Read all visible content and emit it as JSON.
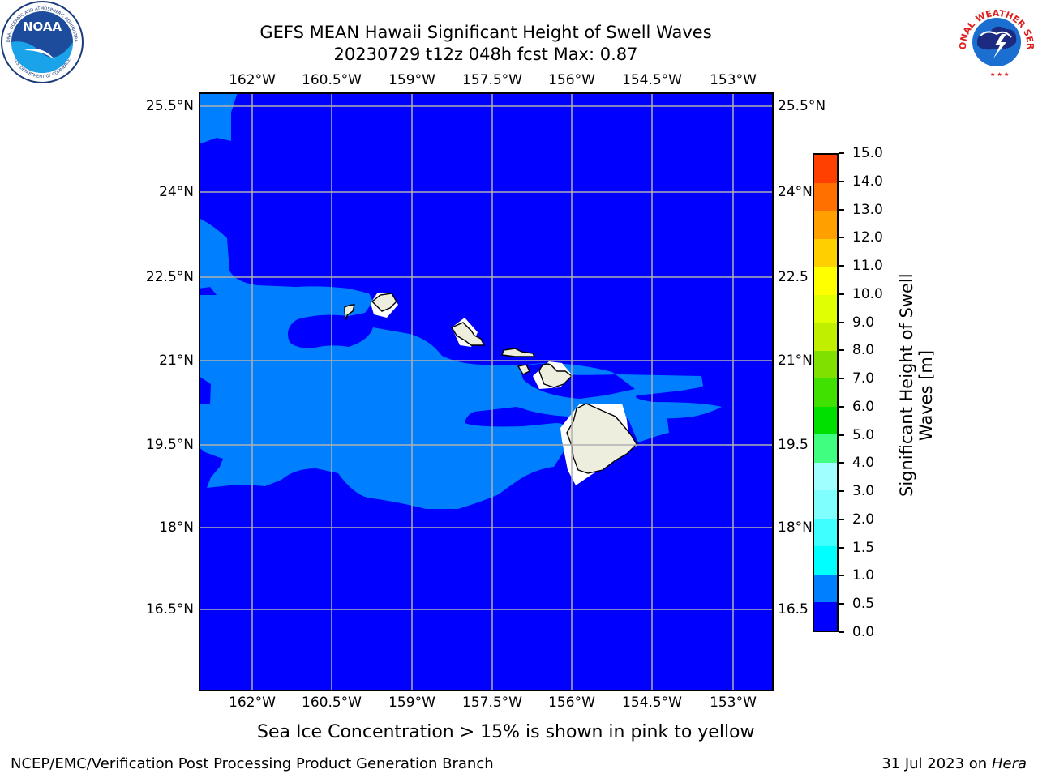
{
  "header": {
    "title_line1": "GEFS MEAN Hawaii Significant Height of Swell Waves",
    "title_line2": "20230729 t12z 048h fcst   Max: 0.87"
  },
  "logos": {
    "noaa_text": "NOAA",
    "noaa_ring_top": "NATIONAL OCEANIC AND ATMOSPHERIC ADMINISTRATION",
    "noaa_ring_bottom": "U.S. DEPARTMENT OF COMMERCE",
    "nws_ring_text": "NATIONAL WEATHER SERVICE"
  },
  "map": {
    "lon_labels": [
      "162°W",
      "160.5°W",
      "159°W",
      "157.5°W",
      "156°W",
      "154.5°W",
      "153°W"
    ],
    "lat_labels": [
      "25.5°N",
      "24°N",
      "22.5°N",
      "21°N",
      "19.5°N",
      "18°N",
      "16.5°N"
    ],
    "lat_labels_right": [
      "25.5°N",
      "24°N",
      "22.5",
      "21°N",
      "19.5",
      "18°N",
      "16.5"
    ],
    "colors": {
      "ocean_deep": "#0000ff",
      "ocean_swell": "#0080ff",
      "land": "#eeeede",
      "grid": "#b0b0b0"
    }
  },
  "colorbar": {
    "title_line1": "Significant Height of Swell",
    "title_line2": "Waves [m]",
    "tick_labels": [
      "0.0",
      "0.5",
      "1.0",
      "1.5",
      "2.0",
      "3.0",
      "4.0",
      "5.0",
      "6.0",
      "7.0",
      "8.0",
      "9.0",
      "10.0",
      "11.0",
      "12.0",
      "13.0",
      "14.0",
      "15.0"
    ],
    "level_colors": [
      "#0000ff",
      "#0080ff",
      "#00ffff",
      "#40ffff",
      "#80ffff",
      "#a0ffff",
      "#40ff80",
      "#00e000",
      "#40e000",
      "#80e000",
      "#c0f000",
      "#e0ff00",
      "#ffff00",
      "#ffd000",
      "#ffa000",
      "#ff7000",
      "#ff4000",
      "#ff0000"
    ]
  },
  "subtitle": "Sea Ice Concentration > 15% is shown in pink to yellow",
  "footer": {
    "left": "NCEP/EMC/Verification Post Processing Product Generation Branch",
    "right_date": "31 Jul 2023 on ",
    "right_host": "Hera"
  }
}
